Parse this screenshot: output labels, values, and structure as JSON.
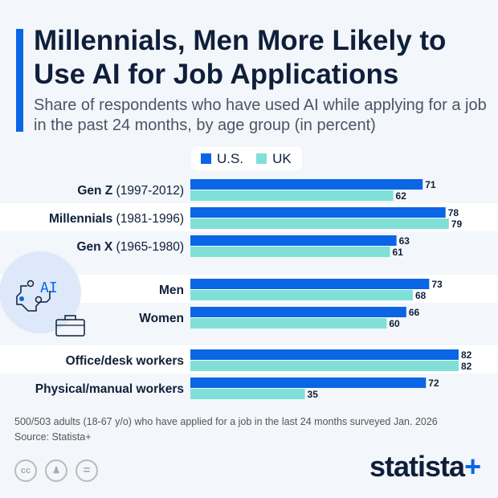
{
  "header": {
    "title": "Millennials, Men More Likely to Use AI for Job Applications",
    "subtitle": "Share of respondents who have used AI while applying for a job in the past 24 months, by age group (in percent)"
  },
  "colors": {
    "us": "#0a66e4",
    "uk": "#80e0d7",
    "accent": "#0a66e4"
  },
  "chart_data": {
    "type": "bar",
    "orientation": "horizontal",
    "categories": [
      {
        "bold": "Gen Z",
        "light": " (1997-2012)"
      },
      {
        "bold": "Millennials",
        "light": " (1981-1996)"
      },
      {
        "bold": "Gen X",
        "light": " (1965-1980)"
      },
      {
        "bold": "Men",
        "light": ""
      },
      {
        "bold": "Women",
        "light": ""
      },
      {
        "bold": "Office/desk workers",
        "light": ""
      },
      {
        "bold": "Physical/manual workers",
        "light": ""
      }
    ],
    "series": [
      {
        "name": "U.S.",
        "values": [
          71,
          78,
          63,
          73,
          66,
          82,
          72
        ]
      },
      {
        "name": "UK",
        "values": [
          62,
          79,
          61,
          68,
          60,
          82,
          35
        ]
      }
    ],
    "legend": "top",
    "grid": false,
    "xlim": [
      0,
      100
    ]
  },
  "footer": {
    "note": "500/503 adults (18-67 y/o) who have applied for a job in the last 24 months surveyed Jan. 2026",
    "source": "Source: Statista+",
    "logo": "statista",
    "logo_plus": "+",
    "icons": [
      "creative-commons-icon",
      "attribution-icon",
      "no-derivatives-icon"
    ]
  },
  "illustration": {
    "ai_label": "AI"
  }
}
